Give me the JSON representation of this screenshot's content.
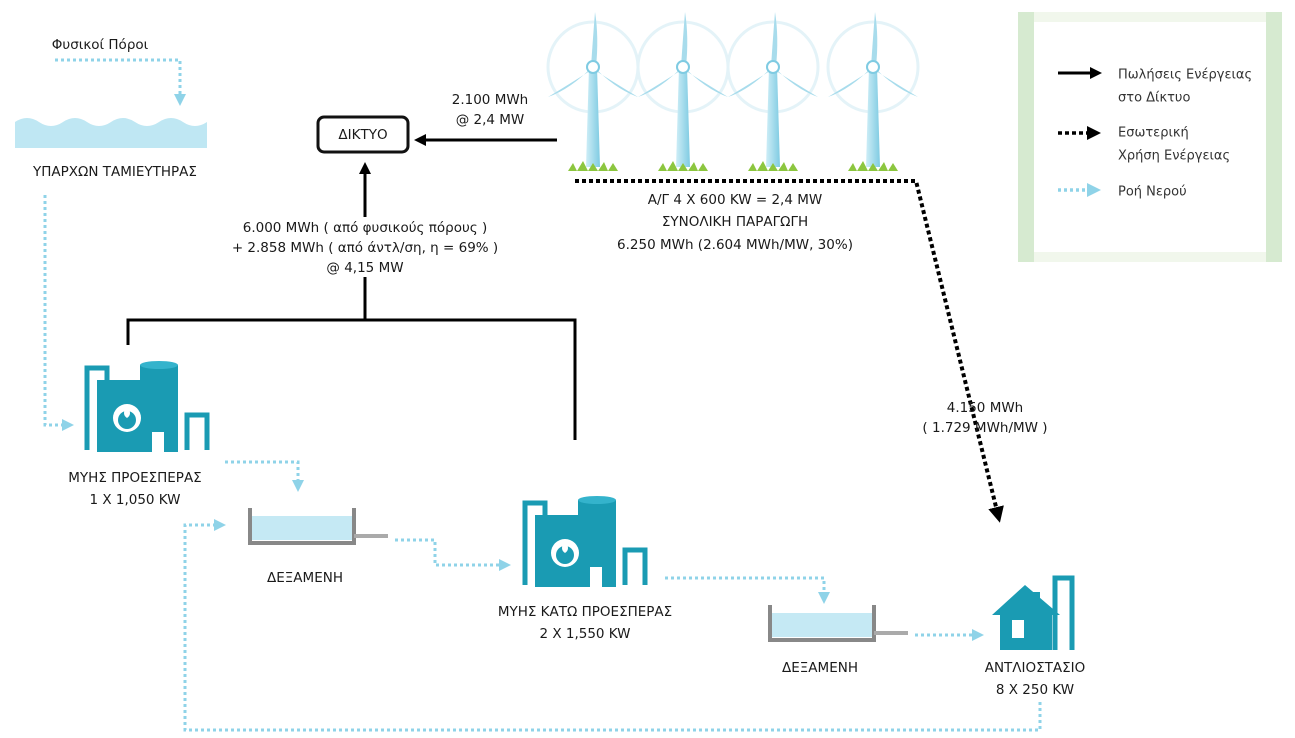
{
  "flows": [
    {
      "lines": [
        "Φυσικοί Πόροι"
      ]
    },
    {
      "lines": [
        "2.100 MWh",
        "@ 2,4 MW"
      ]
    },
    {
      "lines": [
        "6.000 MWh ( από φυσικούς πόρους )",
        "+ 2.858 MWh ( από άντλ/ση, η = 69% )",
        "@ 4,15 MW"
      ]
    },
    {
      "lines": [
        "4.150 MWh",
        "( 1.729 MWh/MW )"
      ]
    }
  ],
  "nodes": [
    {
      "lines": [
        "ΥΠΑΡΧΩΝ ΤΑΜΙΕΥΤΗΡΑΣ"
      ]
    },
    {
      "lines": [
        "ΔΙΚΤΥΟ"
      ]
    },
    {
      "lines": [
        "Α/Γ 4 Χ 600 KW = 2,4 MW",
        "ΣΥΝΟΛΙΚΗ ΠΑΡΑΓΩΓΗ",
        "6.250 MWh (2.604 MWh/MW, 30%)"
      ]
    },
    {
      "lines": [
        "ΜΥΗΣ ΠΡΟΕΣΠΕΡΑΣ",
        "1 Χ 1,050 KW"
      ]
    },
    {
      "lines": [
        "ΔΕΞΑΜΕΝΗ"
      ]
    },
    {
      "lines": [
        "ΜΥΗΣ ΚΑΤΩ ΠΡΟΕΣΠΕΡΑΣ",
        "2 Χ 1,550 KW"
      ]
    },
    {
      "lines": [
        "ΔΕΞΑΜΕΝΗ"
      ]
    },
    {
      "lines": [
        "ΑΝΤΛΙΟΣΤΑΣΙΟ",
        "8 Χ 250 KW"
      ]
    }
  ],
  "legend": [
    {
      "lines": [
        "Πωλήσεις Ενέργειας",
        "στο Δίκτυο"
      ]
    },
    {
      "lines": [
        "Εσωτερική",
        "Χρήση Ενέργειας"
      ]
    },
    {
      "lines": [
        "Ροή Νερού"
      ]
    }
  ]
}
